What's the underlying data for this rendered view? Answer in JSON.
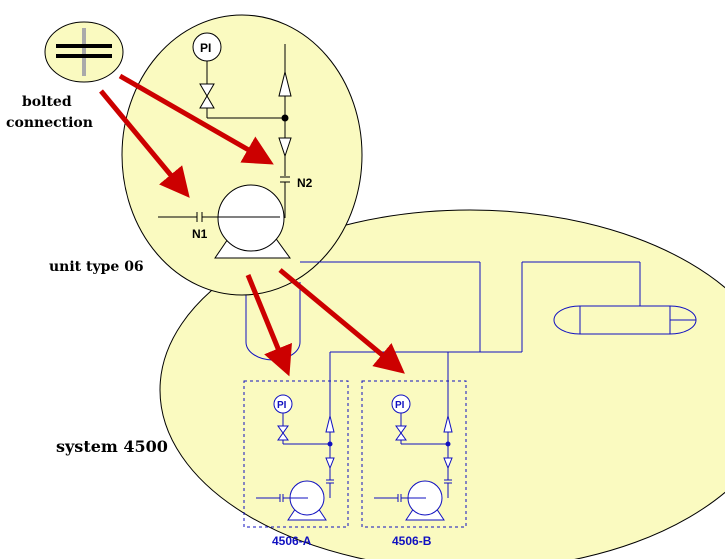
{
  "labels": {
    "bolted_connection_line1": "bolted",
    "bolted_connection_line2": "connection",
    "unit_type": "unit type 06",
    "system": "system 4500",
    "nozzle_1": "N1",
    "nozzle_2": "N2",
    "unit_a": "4506-A",
    "unit_b": "4506-B"
  },
  "instruments": {
    "pi_main": "PI",
    "pi_a": "PI",
    "pi_b": "PI"
  },
  "colors": {
    "bubble_fill": "#fafac0",
    "pipe_blue": "#1010c0",
    "arrow_red": "#cc0000",
    "line_black": "#000000"
  }
}
